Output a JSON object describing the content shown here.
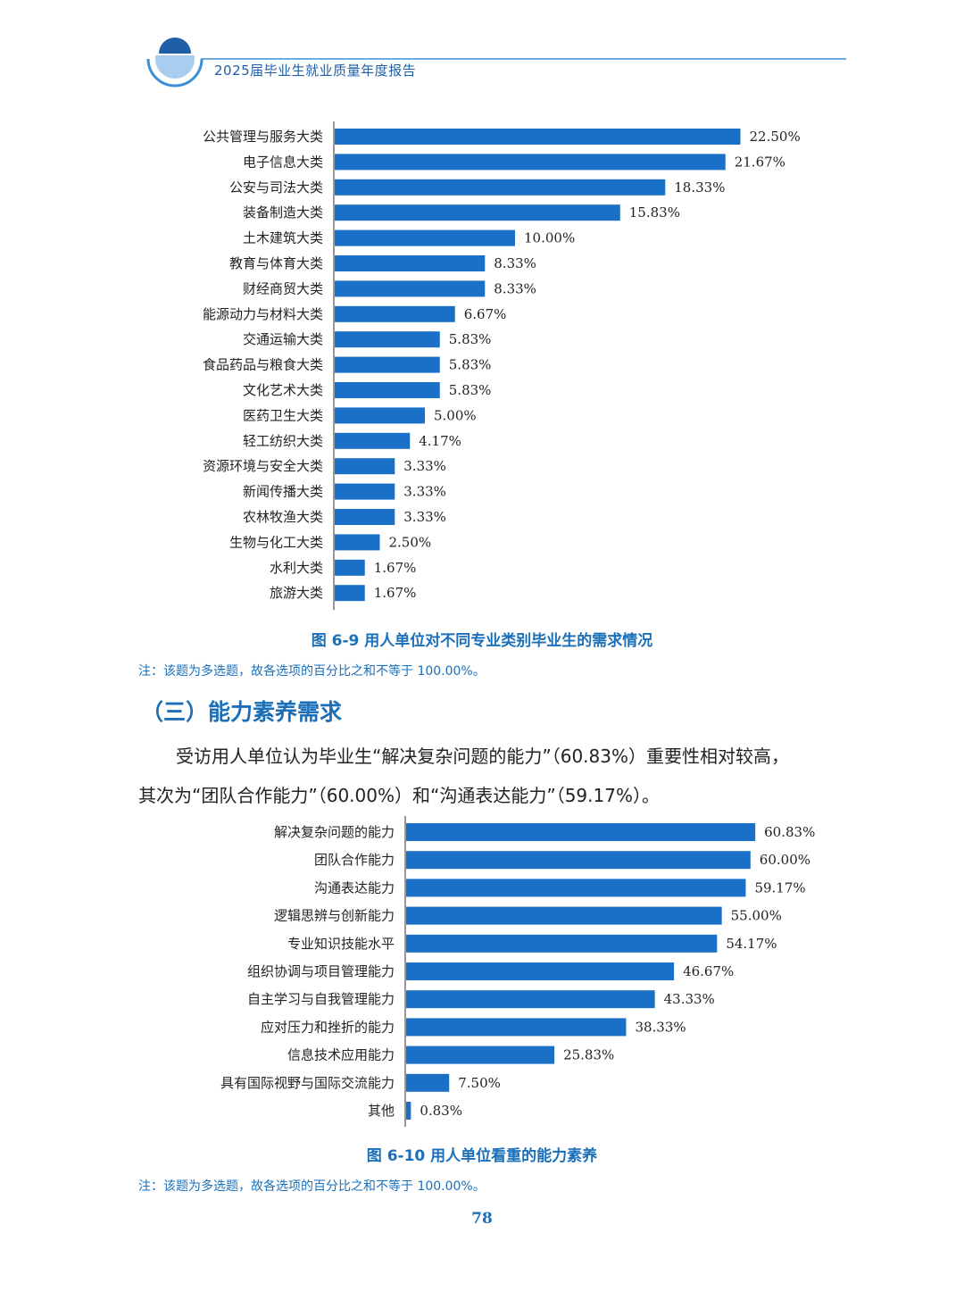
{
  "header": {
    "title": "2025届毕业生就业质量年度报告"
  },
  "section": {
    "title": "（三）能力素养需求"
  },
  "paragraph": {
    "line1": "受访用人单位认为毕业生“解决复杂问题的能力”（60.83%）重要性相对较高，",
    "line2": "其次为“团队合作能力”（60.00%）和“沟通表达能力”（59.17%）。"
  },
  "figure1": {
    "caption": "图 6-9  用人单位对不同专业类别毕业生的需求情况",
    "note": "注：该题为多选题，故各选项的百分比之和不等于 100.00%。"
  },
  "figure2": {
    "caption": "图 6-10  用人单位看重的能力素养",
    "note": "注：该题为多选题，故各选项的百分比之和不等于 100.00%。"
  },
  "page_number": "78",
  "colors": {
    "bar": "#1a6fc7",
    "accent": "#1a6fb8"
  },
  "chart_data": [
    {
      "type": "bar",
      "orientation": "horizontal",
      "title": "",
      "categories": [
        "公共管理与服务大类",
        "电子信息大类",
        "公安与司法大类",
        "装备制造大类",
        "土木建筑大类",
        "教育与体育大类",
        "财经商贸大类",
        "能源动力与材料大类",
        "交通运输大类",
        "食品药品与粮食大类",
        "文化艺术大类",
        "医药卫生大类",
        "轻工纺织大类",
        "资源环境与安全大类",
        "新闻传播大类",
        "农林牧渔大类",
        "生物与化工大类",
        "水利大类",
        "旅游大类"
      ],
      "values": [
        22.5,
        21.67,
        18.33,
        15.83,
        10.0,
        8.33,
        8.33,
        6.67,
        5.83,
        5.83,
        5.83,
        5.0,
        4.17,
        3.33,
        3.33,
        3.33,
        2.5,
        1.67,
        1.67
      ],
      "labels": [
        "22.50%",
        "21.67%",
        "18.33%",
        "15.83%",
        "10.00%",
        "8.33%",
        "8.33%",
        "6.67%",
        "5.83%",
        "5.83%",
        "5.83%",
        "5.00%",
        "4.17%",
        "3.33%",
        "3.33%",
        "3.33%",
        "2.50%",
        "1.67%",
        "1.67%"
      ],
      "grid": false
    },
    {
      "type": "bar",
      "orientation": "horizontal",
      "title": "",
      "categories": [
        "解决复杂问题的能力",
        "团队合作能力",
        "沟通表达能力",
        "逻辑思辨与创新能力",
        "专业知识技能水平",
        "组织协调与项目管理能力",
        "自主学习与自我管理能力",
        "应对压力和挫折的能力",
        "信息技术应用能力",
        "具有国际视野与国际交流能力",
        "其他"
      ],
      "values": [
        60.83,
        60.0,
        59.17,
        55.0,
        54.17,
        46.67,
        43.33,
        38.33,
        25.83,
        7.5,
        0.83
      ],
      "labels": [
        "60.83%",
        "60.00%",
        "59.17%",
        "55.00%",
        "54.17%",
        "46.67%",
        "43.33%",
        "38.33%",
        "25.83%",
        "7.50%",
        "0.83%"
      ],
      "grid": false
    }
  ]
}
